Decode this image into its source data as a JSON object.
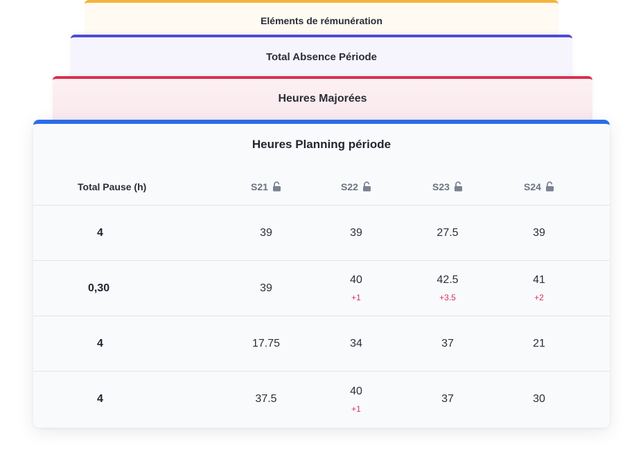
{
  "tabs": {
    "remuneration": "Eléments de rémunération",
    "absence": "Total Absence Période",
    "majorees": "Heures Majorées"
  },
  "card": {
    "title": "Heures Planning période",
    "first_col_header": "Total Pause (h)",
    "weeks": [
      {
        "label": "S21",
        "icon": "unlocked-padlock-icon"
      },
      {
        "label": "S22",
        "icon": "unlocked-padlock-icon"
      },
      {
        "label": "S23",
        "icon": "unlocked-padlock-icon"
      },
      {
        "label": "S24",
        "icon": "unlocked-padlock-icon"
      }
    ],
    "rows": [
      {
        "pause": "4",
        "cells": [
          {
            "value": "39",
            "delta": ""
          },
          {
            "value": "39",
            "delta": ""
          },
          {
            "value": "27.5",
            "delta": ""
          },
          {
            "value": "39",
            "delta": ""
          }
        ]
      },
      {
        "pause": "0,30",
        "cells": [
          {
            "value": "39",
            "delta": ""
          },
          {
            "value": "40",
            "delta": "+1"
          },
          {
            "value": "42.5",
            "delta": "+3.5"
          },
          {
            "value": "41",
            "delta": "+2"
          }
        ]
      },
      {
        "pause": "4",
        "cells": [
          {
            "value": "17.75",
            "delta": ""
          },
          {
            "value": "34",
            "delta": ""
          },
          {
            "value": "37",
            "delta": ""
          },
          {
            "value": "21",
            "delta": ""
          }
        ]
      },
      {
        "pause": "4",
        "cells": [
          {
            "value": "37.5",
            "delta": ""
          },
          {
            "value": "40",
            "delta": "+1"
          },
          {
            "value": "37",
            "delta": ""
          },
          {
            "value": "30",
            "delta": ""
          }
        ]
      }
    ]
  },
  "colors": {
    "tab_remuneration": "#f5b33c",
    "tab_absence": "#4f4ad8",
    "tab_majorees": "#d9304f",
    "card_accent": "#2a6ce8",
    "delta": "#d63357",
    "week_label": "#6b7382"
  }
}
